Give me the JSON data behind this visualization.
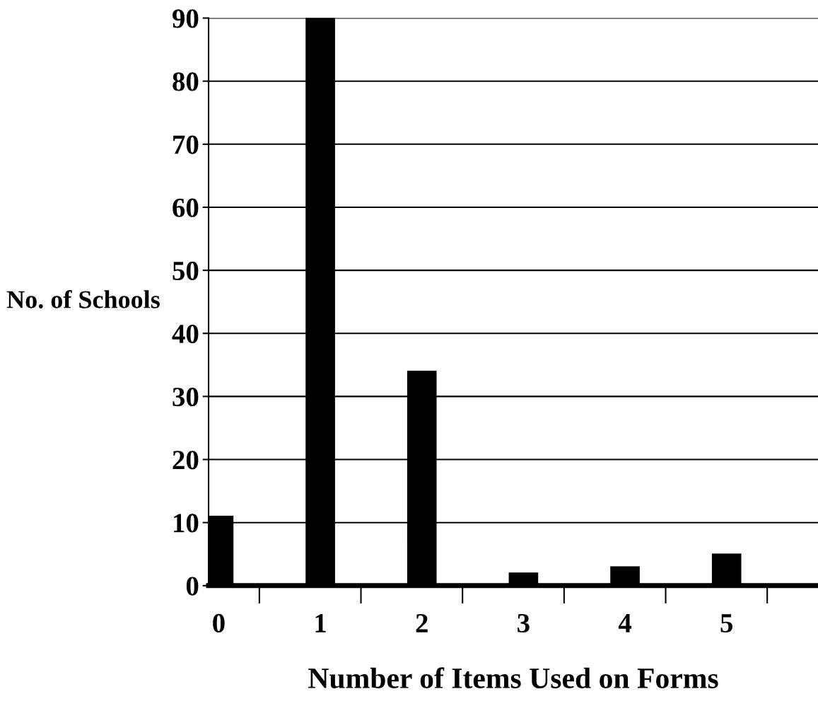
{
  "chart_data": {
    "type": "bar",
    "xlabel": "Number of Items Used on Forms",
    "ylabel": "No. of Schools",
    "categories": [
      "0",
      "1",
      "2",
      "3",
      "4",
      "5"
    ],
    "values": [
      11,
      90,
      34,
      2,
      3,
      5
    ],
    "color": "#000000",
    "ylim": [
      0,
      90
    ],
    "yticks": [
      0,
      10,
      20,
      30,
      40,
      50,
      60,
      70,
      80,
      90
    ],
    "grid": "y"
  }
}
